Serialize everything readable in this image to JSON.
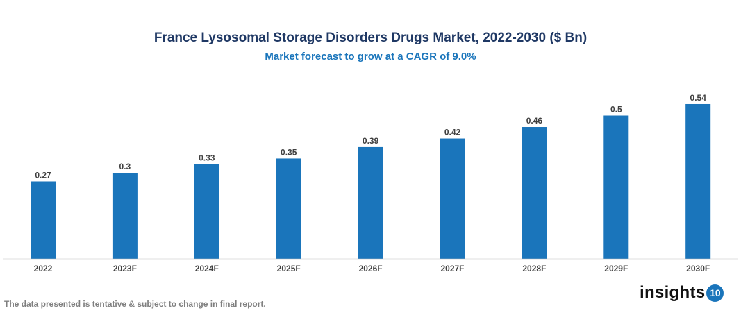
{
  "chart_data": {
    "type": "bar",
    "title": "France Lysosomal Storage Disorders Drugs Market, 2022-2030 ($ Bn)",
    "subtitle": "Market forecast to grow at a CAGR of 9.0%",
    "categories": [
      "2022",
      "2023F",
      "2024F",
      "2025F",
      "2026F",
      "2027F",
      "2028F",
      "2029F",
      "2030F"
    ],
    "values": [
      0.27,
      0.3,
      0.33,
      0.35,
      0.39,
      0.42,
      0.46,
      0.5,
      0.54
    ],
    "xlabel": "",
    "ylabel": "",
    "ylim": [
      0,
      0.6
    ],
    "grid": false,
    "data_labels": true,
    "bar_color": "#1a75bb"
  },
  "footnote": "The data presented is tentative & subject to change in final report.",
  "logo": {
    "text": "insights",
    "badge": "10"
  }
}
